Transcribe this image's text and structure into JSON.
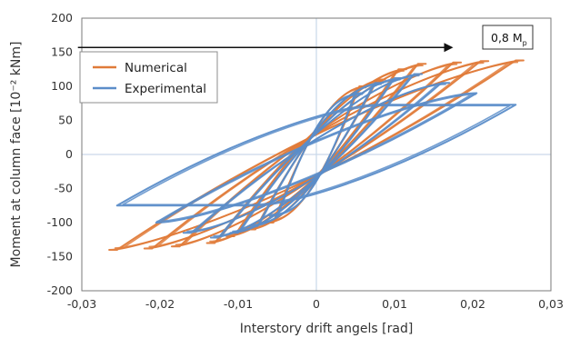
{
  "chart_data": {
    "type": "line",
    "xlabel": "Interstory drift angels [rad]",
    "ylabel": "Moment at column face [10⁻² kNm]",
    "xlim": [
      -0.03,
      0.03
    ],
    "ylim": [
      -200,
      200
    ],
    "x_ticks": [
      -0.03,
      -0.02,
      -0.01,
      0,
      0.01,
      0.02,
      0.03
    ],
    "x_tick_labels": [
      "-0,03",
      "-0,02",
      "-0,01",
      "0",
      "0,01",
      "0,02",
      "0,03"
    ],
    "y_ticks": [
      -200,
      -150,
      -100,
      -50,
      0,
      50,
      100,
      150,
      200
    ],
    "y_tick_labels": [
      "-200",
      "-150",
      "-100",
      "-50",
      "0",
      "50",
      "100",
      "150",
      "200"
    ],
    "grid": "vertical and horizontal lines at 0",
    "legend_position": "top-left",
    "annotation": {
      "text": "0,8 M",
      "subscript": "p",
      "arrow_y": 157,
      "arrow_x_start": -0.0305,
      "arrow_x_end": 0.0175
    },
    "series": [
      {
        "name": "Numerical",
        "color": "#E07B39",
        "loops": [
          {
            "xmax": 0.0055,
            "ymax": 100,
            "ymin": -100
          },
          {
            "xmax": 0.0078,
            "ymax": 110,
            "ymin": -110
          },
          {
            "xmax": 0.0105,
            "ymax": 125,
            "ymin": -120
          },
          {
            "xmax": 0.013,
            "ymax": 133,
            "ymin": -130
          },
          {
            "xmax": 0.0175,
            "ymax": 135,
            "ymin": -135
          },
          {
            "xmax": 0.021,
            "ymax": 137,
            "ymin": -138
          },
          {
            "xmax": 0.0255,
            "ymax": 138,
            "ymin": -140
          }
        ]
      },
      {
        "name": "Experimental",
        "color": "#5B8DC9",
        "loops": [
          {
            "xmax": 0.005,
            "ymax": 90,
            "ymin": -90
          },
          {
            "xmax": 0.0075,
            "ymax": 105,
            "ymin": -105
          },
          {
            "xmax": 0.01,
            "ymax": 112,
            "ymin": -115
          },
          {
            "xmax": 0.0125,
            "ymax": 118,
            "ymin": -122
          },
          {
            "xmax": 0.016,
            "ymax": 105,
            "ymin": -115
          },
          {
            "xmax": 0.0205,
            "ymax": 90,
            "ymin": -100
          },
          {
            "xmax": 0.0255,
            "ymax": 73,
            "ymin": -75
          }
        ]
      }
    ]
  }
}
